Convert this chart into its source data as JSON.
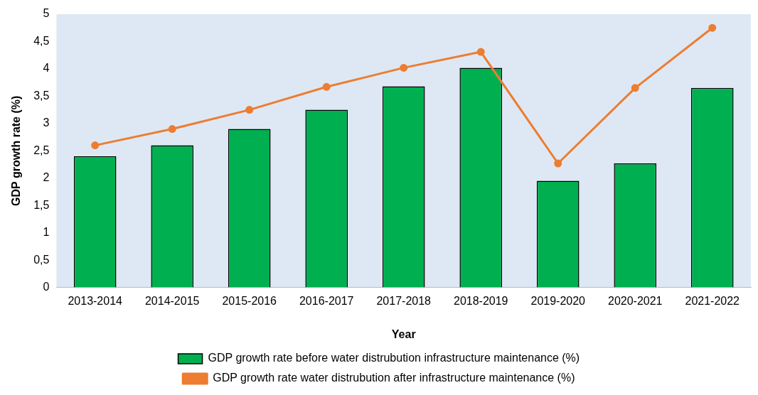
{
  "chart_data": {
    "type": "bar",
    "xlabel": "Year",
    "ylabel": "GDP growth rate (%)",
    "categories": [
      "2013-2014",
      "2014-2015",
      "2015-2016",
      "2016-2017",
      "2017-2018",
      "2018-2019",
      "2019-2020",
      "2020-2021",
      "2021-2022"
    ],
    "series": [
      {
        "name": "GDP growth rate before water distrubution infrastructure maintenance (%)",
        "color": "#00b050",
        "values": [
          2.4,
          2.6,
          2.9,
          3.25,
          3.68,
          4.02,
          1.95,
          2.27,
          3.65
        ]
      },
      {
        "name": "GDP growth rate water distrubution after infrastructure maintenance (%)",
        "type": "line",
        "color": "#ed7d31",
        "marker": "circle",
        "values": [
          2.6,
          2.9,
          3.25,
          3.67,
          4.02,
          4.31,
          2.27,
          3.65,
          4.75
        ]
      }
    ],
    "ylim": [
      0,
      5
    ],
    "yticks": [
      0,
      {
        "value": 0.5,
        "label": "0,5"
      },
      1,
      {
        "value": 1.5,
        "label": "1,5"
      },
      2,
      {
        "value": 2.5,
        "label": "2,5"
      },
      3,
      {
        "value": 3.5,
        "label": "3,5"
      },
      4,
      {
        "value": 4.5,
        "label": "4,5"
      },
      5
    ],
    "grid": false,
    "legend": "bottom"
  }
}
